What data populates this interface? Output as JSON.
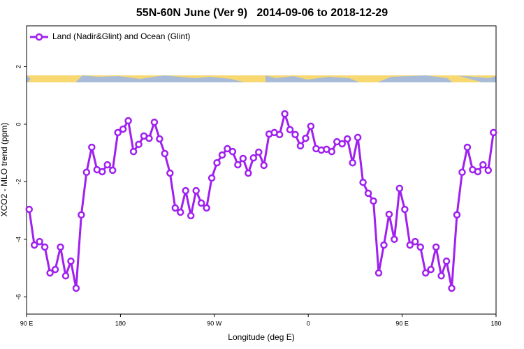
{
  "chart_data": {
    "type": "line",
    "title": "55N-60N June (Ver 9)   2014-09-06 to 2018-12-29",
    "x_label": "Longitude (deg E)",
    "y_label": "XCO2 - MLO trend (ppm)",
    "x": [
      92.5,
      97.5,
      102.5,
      107.5,
      112.5,
      117.5,
      122.5,
      127.5,
      132.5,
      137.5,
      142.5,
      147.5,
      152.5,
      157.5,
      162.5,
      167.5,
      172.5,
      177.5,
      182.5,
      187.5,
      192.5,
      197.5,
      202.5,
      207.5,
      212.5,
      217.5,
      222.5,
      227.5,
      232.5,
      237.5,
      242.5,
      247.5,
      252.5,
      257.5,
      262.5,
      267.5,
      272.5,
      277.5,
      282.5,
      287.5,
      292.5,
      297.5,
      302.5,
      307.5,
      312.5,
      317.5,
      322.5,
      327.5,
      332.5,
      337.5,
      342.5,
      347.5,
      352.5,
      357.5,
      362.5,
      367.5,
      372.5,
      377.5,
      382.5,
      387.5,
      392.5,
      397.5,
      402.5,
      407.5,
      412.5,
      417.5,
      422.5,
      427.5,
      432.5,
      437.5,
      442.5,
      447.5,
      452.5,
      457.5,
      462.5,
      467.5,
      472.5,
      477.5,
      482.5,
      487.5,
      492.5,
      497.5,
      502.5,
      507.5,
      512.5,
      517.5,
      522.5,
      527.5,
      532.5,
      537.5
    ],
    "series": [
      {
        "name": "Land (Nadir&Glint) and Ocean (Glint)",
        "color": "#a020f0",
        "values": [
          -2.96,
          -4.2,
          -4.08,
          -4.27,
          -5.17,
          -5.05,
          -4.27,
          -5.27,
          -4.76,
          -5.7,
          -3.15,
          -1.67,
          -0.8,
          -1.58,
          -1.65,
          -1.41,
          -1.6,
          -0.29,
          -0.17,
          0.12,
          -0.95,
          -0.7,
          -0.41,
          -0.49,
          0.07,
          -0.51,
          -1.02,
          -1.7,
          -2.91,
          -3.06,
          -2.31,
          -3.18,
          -2.31,
          -2.74,
          -2.91,
          -1.87,
          -1.34,
          -1.07,
          -0.85,
          -0.95,
          -1.41,
          -1.19,
          -1.7,
          -1.17,
          -0.97,
          -1.43,
          -0.34,
          -0.29,
          -0.36,
          0.36,
          -0.19,
          -0.36,
          -0.75,
          -0.49,
          -0.07,
          -0.85,
          -0.9,
          -0.87,
          -0.95,
          -0.61,
          -0.68,
          -0.51,
          -1.34,
          -0.46,
          -2.02,
          -2.4,
          -2.67,
          -5.17,
          -4.2,
          -3.13,
          -4.0,
          -2.23,
          -2.96,
          -4.2,
          -4.08,
          -4.27,
          -5.17,
          -5.05,
          -4.27,
          -5.27,
          -4.76,
          -5.7,
          -3.15,
          -1.67,
          -0.8,
          -1.58,
          -1.65,
          -1.41,
          -1.6,
          -0.29
        ]
      }
    ],
    "xlim": [
      90,
      540
    ],
    "xticks": [
      {
        "value": 90,
        "label": "90 E"
      },
      {
        "value": 180,
        "label": "180"
      },
      {
        "value": 270,
        "label": "90 W"
      },
      {
        "value": 360,
        "label": "0"
      },
      {
        "value": 450,
        "label": "90 E"
      },
      {
        "value": 540,
        "label": "180"
      }
    ],
    "ylim": [
      -6.6,
      3.42
    ],
    "yticks": [
      -6,
      -4,
      -2,
      0,
      2
    ],
    "legend": "top-left"
  }
}
